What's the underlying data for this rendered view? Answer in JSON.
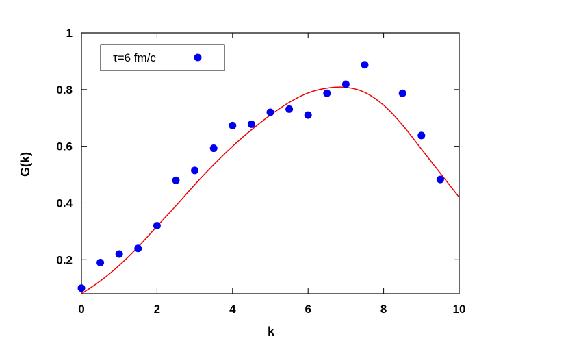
{
  "chart_data": {
    "type": "scatter",
    "xlabel": "k",
    "ylabel": "G(k)",
    "xlim": [
      0,
      10
    ],
    "ylim": [
      0.08,
      1.0
    ],
    "x_ticks": [
      "0",
      "2",
      "4",
      "6",
      "8",
      "10"
    ],
    "y_ticks": [
      "0.2",
      "0.4",
      "0.6",
      "0.8",
      "1"
    ],
    "grid": false,
    "legend_position": "top-left",
    "series": [
      {
        "name": "τ=6 fm/c",
        "kind": "points",
        "color": "#0000ee",
        "x": [
          0,
          0.5,
          1,
          1.5,
          2,
          2.5,
          3,
          3.5,
          4,
          4.5,
          5,
          5.5,
          6,
          6.5,
          7,
          7.5,
          8.5,
          9,
          9.5
        ],
        "y": [
          0.1,
          0.19,
          0.22,
          0.24,
          0.32,
          0.48,
          0.515,
          0.593,
          0.673,
          0.678,
          0.72,
          0.731,
          0.71,
          0.787,
          0.819,
          0.887,
          0.787,
          0.638,
          0.483
        ]
      },
      {
        "kind": "line",
        "color": "#ee0000",
        "x": [
          0,
          0.5,
          1,
          1.5,
          2,
          2.5,
          3,
          3.5,
          4,
          4.5,
          5,
          5.5,
          6,
          6.5,
          7,
          7.5,
          8,
          8.5,
          9,
          9.5,
          10
        ],
        "y": [
          0.08,
          0.125,
          0.18,
          0.245,
          0.318,
          0.39,
          0.465,
          0.535,
          0.6,
          0.658,
          0.71,
          0.755,
          0.788,
          0.805,
          0.808,
          0.79,
          0.745,
          0.675,
          0.59,
          0.505,
          0.42
        ]
      }
    ]
  }
}
